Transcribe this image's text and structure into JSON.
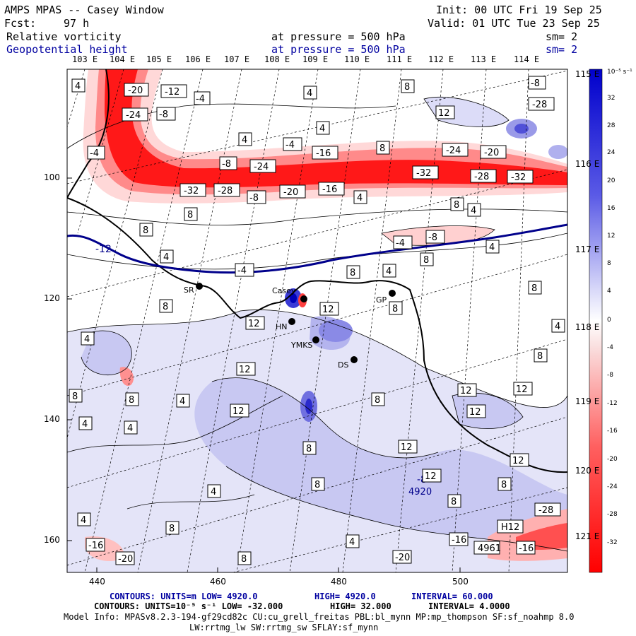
{
  "header": {
    "title": "AMPS MPAS -- Casey Window",
    "init": "Init: 00 UTC Fri 19 Sep 25",
    "fcst_label": "Fcst:",
    "fcst_value": "97 h",
    "valid": "Valid: 01 UTC Tue 23 Sep 25",
    "field1": "Relative vorticity",
    "field1_pressure": "at pressure =  500 hPa",
    "field1_sm": "sm= 2",
    "field2": "Geopotential height",
    "field2_pressure": "at pressure =  500 hPa",
    "field2_sm": "sm= 2"
  },
  "longitudes_top": [
    "103 E",
    "104 E",
    "105 E",
    "106 E",
    "107 E",
    "108 E",
    "109 E",
    "110 E",
    "111 E",
    "112 E",
    "113 E",
    "114 E"
  ],
  "longitudes_right": [
    "115 E",
    "116 E",
    "117 E",
    "118 E",
    "119 E",
    "120 E",
    "121 E"
  ],
  "y_axis_ticks": [
    "100",
    "120",
    "140",
    "160"
  ],
  "x_axis_ticks": [
    "440",
    "460",
    "480",
    "500"
  ],
  "colorbar": {
    "unit": "10⁻⁵ s⁻¹",
    "labels": [
      "32",
      "28",
      "24",
      "20",
      "16",
      "12",
      "8",
      "4",
      "0",
      "-4",
      "-8",
      "-12",
      "-16",
      "-20",
      "-24",
      "-28",
      "-32"
    ]
  },
  "stations": [
    {
      "name": "SR"
    },
    {
      "name": "Casey"
    },
    {
      "name": "HN"
    },
    {
      "name": "YMKS"
    },
    {
      "name": "DS"
    },
    {
      "name": "GP"
    }
  ],
  "contour_labels": [
    "-20",
    "-12",
    "-4",
    "-24",
    "-8",
    "4",
    "8",
    "12",
    "-16",
    "-32",
    "-28",
    "-4",
    "-12",
    "-8",
    "4920",
    "H12",
    "4961",
    "-16",
    "-20",
    "-8",
    "-4"
  ],
  "footer": {
    "line1_prefix": "CONTOURS:  UNITS=m  LOW=  4920.0",
    "line1_high": "HIGH=  4920.0",
    "line1_interval": "INTERVAL=   60.000",
    "line2_prefix": "CONTOURS:  UNITS=10⁻⁵ s⁻¹  LOW= -32.000",
    "line2_high": "HIGH=  32.000",
    "line2_interval": "INTERVAL=   4.0000",
    "model_info": "Model Info: MPASv8.2.3-194-gf29cd82c CU:cu_grell_freitas PBL:bl_mynn MP:mp_thompson SF:sf_noahmp 8.0",
    "model_info2": "LW:rrtmg_lw SW:rrtmg_sw SFLAY:sf_mynn"
  },
  "colors": {
    "red": "#ff0000",
    "blue": "#0000ff",
    "navy": "#00008b"
  }
}
